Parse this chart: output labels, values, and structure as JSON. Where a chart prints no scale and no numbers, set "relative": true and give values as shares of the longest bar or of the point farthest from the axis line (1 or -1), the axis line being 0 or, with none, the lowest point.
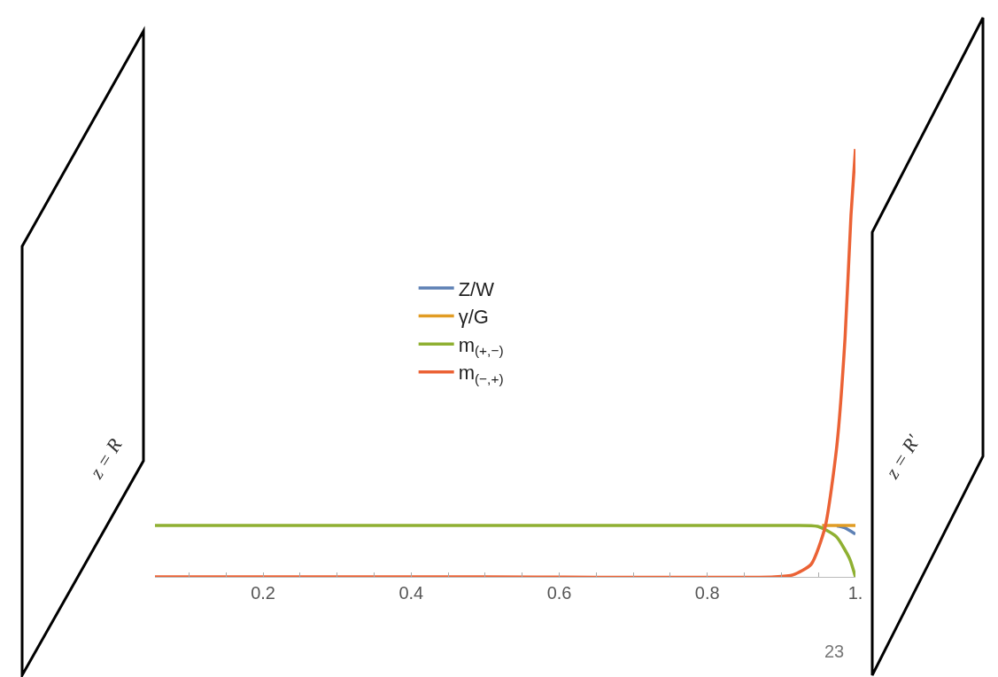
{
  "chart_data": {
    "type": "line",
    "relative": true,
    "xlim": [
      0.054,
      1.0
    ],
    "xticks": [
      {
        "value": 0.1,
        "label": null
      },
      {
        "value": 0.15,
        "label": null
      },
      0.2,
      {
        "value": 0.25,
        "label": null
      },
      {
        "value": 0.3,
        "label": null
      },
      {
        "value": 0.35,
        "label": null
      },
      0.4,
      {
        "value": 0.45,
        "label": null
      },
      {
        "value": 0.5,
        "label": null
      },
      {
        "value": 0.55,
        "label": null
      },
      0.6,
      {
        "value": 0.65,
        "label": null
      },
      {
        "value": 0.7,
        "label": null
      },
      {
        "value": 0.75,
        "label": null
      },
      0.8,
      {
        "value": 0.85,
        "label": null
      },
      {
        "value": 0.9,
        "label": null
      },
      {
        "value": 0.95,
        "label": null
      },
      {
        "value": 1.0,
        "label": "1."
      }
    ],
    "tick_labels": "x",
    "legend": "left",
    "marker": "none",
    "line_style": "solid",
    "series": [
      {
        "name": "Z/W",
        "color": "#5e81b5",
        "x": [
          0.975,
          0.985,
          1.0
        ],
        "values": [
          0.119,
          0.115,
          0.1
        ]
      },
      {
        "name": "γ/G",
        "color": "#e19c24",
        "x": [
          0.955,
          1.0
        ],
        "values": [
          0.12,
          0.12
        ]
      },
      {
        "name": "m$_{(+,−)}$",
        "color": "#8fb032",
        "x": [
          0.054,
          0.5,
          0.9,
          0.949,
          0.974,
          0.992,
          1.0
        ],
        "values": [
          0.12,
          0.12,
          0.12,
          0.118,
          0.094,
          0.043,
          0.0
        ]
      },
      {
        "name": "m$_{(−,+)}$",
        "color": "#eb6235",
        "x": [
          0.054,
          0.5,
          0.891,
          0.916,
          0.94,
          0.959,
          0.975,
          0.986,
          0.994,
          1.0
        ],
        "values": [
          0.0,
          0.0,
          0.0,
          0.005,
          0.029,
          0.116,
          0.308,
          0.559,
          0.845,
          1.0
        ]
      }
    ],
    "annotations": [
      "z = R",
      "z = R′",
      "23"
    ]
  }
}
